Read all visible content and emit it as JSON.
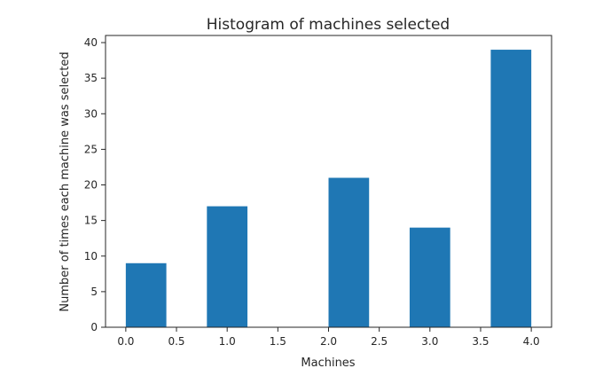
{
  "chart_data": {
    "type": "bar",
    "title": "Histogram of machines selected",
    "xlabel": "Machines",
    "ylabel": "Number of times each machine was selected",
    "bins": [
      {
        "start": 0.0,
        "end": 0.4,
        "value": 9
      },
      {
        "start": 0.8,
        "end": 1.2,
        "value": 17
      },
      {
        "start": 2.0,
        "end": 2.4,
        "value": 21
      },
      {
        "start": 2.8,
        "end": 3.2,
        "value": 14
      },
      {
        "start": 3.6,
        "end": 4.0,
        "value": 39
      }
    ],
    "xlim": [
      -0.2,
      4.2
    ],
    "ylim": [
      0,
      41
    ],
    "xticks": [
      0.0,
      0.5,
      1.0,
      1.5,
      2.0,
      2.5,
      3.0,
      3.5,
      4.0
    ],
    "xtick_labels": [
      "0.0",
      "0.5",
      "1.0",
      "1.5",
      "2.0",
      "2.5",
      "3.0",
      "3.5",
      "4.0"
    ],
    "yticks": [
      0,
      5,
      10,
      15,
      20,
      25,
      30,
      35,
      40
    ],
    "ytick_labels": [
      "0",
      "5",
      "10",
      "15",
      "20",
      "25",
      "30",
      "35",
      "40"
    ],
    "bar_color": "#1f77b4",
    "grid": false,
    "legend": "none"
  }
}
